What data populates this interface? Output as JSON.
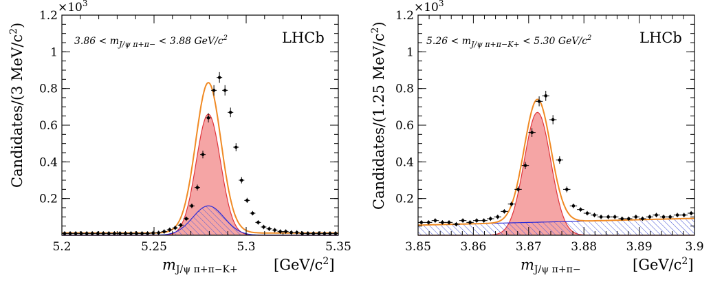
{
  "chart_data": [
    {
      "type": "line",
      "panel": "left",
      "xlim": [
        5.2,
        5.35
      ],
      "ylim": [
        0,
        1.2
      ],
      "y_scale_label": "×10",
      "y_scale_exp": "3",
      "xlabel": "m",
      "xlabel_sub": "J/ψ π+π−K+",
      "xunit": "[GeV/c",
      "xunit_sup": "2",
      "xunit_close": "]",
      "ylabel": "Candidates/(3 MeV/c",
      "ylabel_sup": "2",
      "ylabel_close": ")",
      "xticks": [
        "5.2",
        "5.25",
        "5.3",
        "5.35"
      ],
      "yticks": [
        "0.2",
        "0.4",
        "0.6",
        "0.8",
        "1",
        "1.2"
      ],
      "annotation": "3.86 < m",
      "annotation_sub": "J/ψ π+π−",
      "annotation_tail": " < 3.88 GeV/c",
      "annotation_sup": "2",
      "experiment": "LHCb",
      "model": {
        "peak": 5.2795,
        "sigma": 0.0066,
        "signal_amp": 0.66,
        "bkg_amp": 0.16,
        "bkg_sigma": 0.0085,
        "flat": 0.012
      },
      "data_points": {
        "x": [
          5.2015,
          5.2045,
          5.2075,
          5.2105,
          5.2135,
          5.2165,
          5.2195,
          5.2225,
          5.2255,
          5.2285,
          5.2315,
          5.2345,
          5.2375,
          5.2405,
          5.2435,
          5.2465,
          5.2495,
          5.2525,
          5.2555,
          5.2585,
          5.2615,
          5.2645,
          5.2675,
          5.2705,
          5.2735,
          5.2765,
          5.2795,
          5.2825,
          5.2855,
          5.2885,
          5.2915,
          5.2945,
          5.2975,
          5.3005,
          5.3035,
          5.3065,
          5.3095,
          5.3125,
          5.3155,
          5.3185,
          5.3215,
          5.3245,
          5.3275,
          5.3305,
          5.3335,
          5.3365,
          5.3395,
          5.3425,
          5.3455,
          5.3485
        ],
        "y": [
          0.01,
          0.01,
          0.01,
          0.01,
          0.01,
          0.01,
          0.01,
          0.01,
          0.01,
          0.01,
          0.01,
          0.01,
          0.01,
          0.01,
          0.01,
          0.01,
          0.012,
          0.013,
          0.02,
          0.03,
          0.04,
          0.055,
          0.09,
          0.16,
          0.26,
          0.44,
          0.64,
          0.79,
          0.86,
          0.79,
          0.67,
          0.48,
          0.3,
          0.19,
          0.12,
          0.07,
          0.045,
          0.035,
          0.028,
          0.02,
          0.02,
          0.015,
          0.015,
          0.01,
          0.01,
          0.01,
          0.01,
          0.01,
          0.01,
          0.01
        ]
      }
    },
    {
      "type": "line",
      "panel": "right",
      "xlim": [
        3.85,
        3.9
      ],
      "ylim": [
        0,
        1.2
      ],
      "y_scale_label": "×10",
      "y_scale_exp": "3",
      "xlabel": "m",
      "xlabel_sub": "J/ψ π+π−",
      "xunit": "[GeV/c",
      "xunit_sup": "2",
      "xunit_close": "]",
      "ylabel": "Candidates/(1.25 MeV/c",
      "ylabel_sup": "2",
      "ylabel_close": ")",
      "xticks": [
        "3.85",
        "3.86",
        "3.87",
        "3.88",
        "3.89",
        "3.9"
      ],
      "yticks": [
        "0.2",
        "0.4",
        "0.6",
        "0.8",
        "1",
        "1.2"
      ],
      "annotation": "5.26 < m",
      "annotation_sub": "J/ψ π+π−K+",
      "annotation_tail": " < 5.30 GeV/c",
      "annotation_sup": "2",
      "experiment": "LHCb",
      "model": {
        "peak": 3.8716,
        "sigma": 0.0024,
        "signal_amp": 0.67,
        "bkg_start": 0.055,
        "bkg_end": 0.092
      },
      "data_points": {
        "x": [
          3.8506,
          3.8519,
          3.8531,
          3.8544,
          3.8556,
          3.8569,
          3.8581,
          3.8594,
          3.8606,
          3.8619,
          3.8631,
          3.8644,
          3.8656,
          3.8669,
          3.8681,
          3.8694,
          3.8706,
          3.8719,
          3.8731,
          3.8744,
          3.8756,
          3.8769,
          3.8781,
          3.8794,
          3.8806,
          3.8819,
          3.8831,
          3.8844,
          3.8856,
          3.8869,
          3.8881,
          3.8894,
          3.8906,
          3.8919,
          3.8931,
          3.8944,
          3.8956,
          3.8969,
          3.8981,
          3.8994
        ],
        "y": [
          0.07,
          0.07,
          0.08,
          0.07,
          0.07,
          0.06,
          0.08,
          0.07,
          0.08,
          0.08,
          0.09,
          0.1,
          0.13,
          0.17,
          0.25,
          0.38,
          0.56,
          0.73,
          0.76,
          0.63,
          0.41,
          0.25,
          0.16,
          0.14,
          0.12,
          0.11,
          0.1,
          0.1,
          0.1,
          0.09,
          0.09,
          0.1,
          0.09,
          0.1,
          0.11,
          0.1,
          0.1,
          0.11,
          0.11,
          0.12
        ]
      }
    }
  ]
}
